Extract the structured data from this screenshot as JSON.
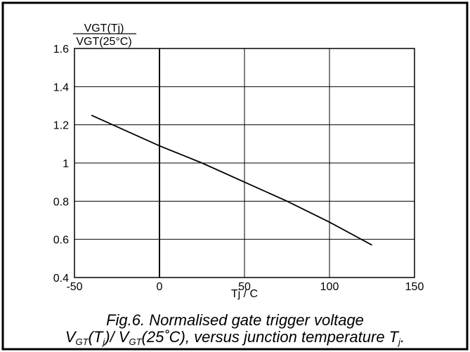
{
  "chart_data": {
    "type": "line",
    "title": "",
    "ylabel_num": "VGT(Tj)",
    "ylabel_den": "VGT(25°C)",
    "xlabel": "Tj / C",
    "xlim": [
      -50,
      150
    ],
    "ylim": [
      0.4,
      1.6
    ],
    "x_ticks": [
      -50,
      0,
      50,
      100,
      150
    ],
    "x_tick_labels": [
      "-50",
      "0",
      "50",
      "100",
      "150"
    ],
    "y_ticks": [
      0.4,
      0.6,
      0.8,
      1.0,
      1.2,
      1.4,
      1.6
    ],
    "y_tick_labels": [
      "0.4",
      "0.6",
      "0.8",
      "1",
      "1.2",
      "1.4",
      "1.6"
    ],
    "grid": true,
    "series": [
      {
        "x": [
          -40,
          -20,
          0,
          25,
          50,
          75,
          100,
          125
        ],
        "y": [
          1.25,
          1.17,
          1.09,
          1.0,
          0.9,
          0.8,
          0.69,
          0.57
        ]
      }
    ]
  },
  "caption": {
    "line1": "Fig.6.  Normalised gate trigger voltage",
    "line2_parts": {
      "v1": "V",
      "gt1": "GT",
      "paren1": "(T",
      "j1": "j",
      "mid": ")/ V",
      "gt2": "GT",
      "paren2": "(25˚C), versus junction temperature T",
      "j2": "j",
      "end": "."
    }
  },
  "colors": {
    "line": "#000000",
    "grid": "#000000",
    "background": "#ffffff"
  }
}
